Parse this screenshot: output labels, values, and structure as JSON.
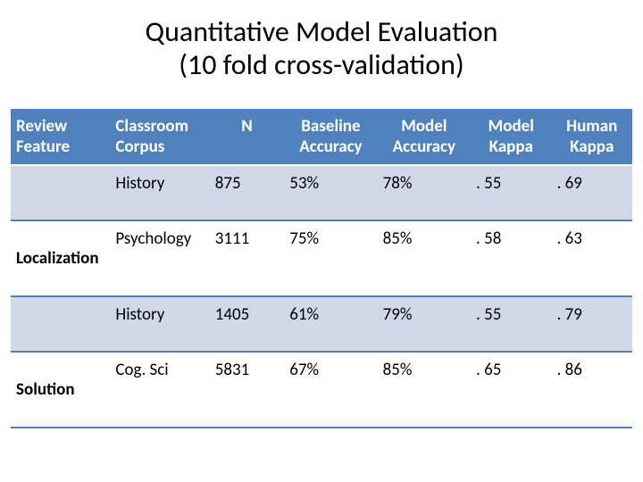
{
  "title_line1": "Quantitative Model Evaluation",
  "title_line2": "(10 fold cross-validation)",
  "table": {
    "header_bg": "#4f81bd",
    "header_fg": "#ffffff",
    "band_bg": "#d0d8e8",
    "border_color": "#4f81bd",
    "columns": [
      {
        "label_l1": "Review",
        "label_l2": "Feature",
        "align": "left"
      },
      {
        "label_l1": "Classroom",
        "label_l2": "Corpus",
        "align": "left"
      },
      {
        "label_l1": "N",
        "label_l2": "",
        "align": "center"
      },
      {
        "label_l1": "Baseline",
        "label_l2": "Accuracy",
        "align": "center"
      },
      {
        "label_l1": "Model",
        "label_l2": "Accuracy",
        "align": "center"
      },
      {
        "label_l1": "Model",
        "label_l2": "Kappa",
        "align": "center"
      },
      {
        "label_l1": "Human",
        "label_l2": "Kappa",
        "align": "center"
      }
    ],
    "rows": [
      {
        "feature": "",
        "corpus": "History",
        "n": "875",
        "baseline": "53%",
        "model": "78%",
        "mkappa": ". 55",
        "hkappa": ". 69",
        "band": true,
        "tall": false
      },
      {
        "feature": "Localization",
        "corpus": "Psychology",
        "n": "3111",
        "baseline": "75%",
        "model": "85%",
        "mkappa": ". 58",
        "hkappa": ". 63",
        "band": false,
        "tall": true
      },
      {
        "feature": "",
        "corpus": "History",
        "n": "1405",
        "baseline": "61%",
        "model": "79%",
        "mkappa": ". 55",
        "hkappa": ". 79",
        "band": true,
        "tall": false
      },
      {
        "feature": "Solution",
        "corpus": "Cog. Sci",
        "n": "5831",
        "baseline": "67%",
        "model": "85%",
        "mkappa": ". 65",
        "hkappa": ". 86",
        "band": false,
        "tall": true
      }
    ]
  }
}
